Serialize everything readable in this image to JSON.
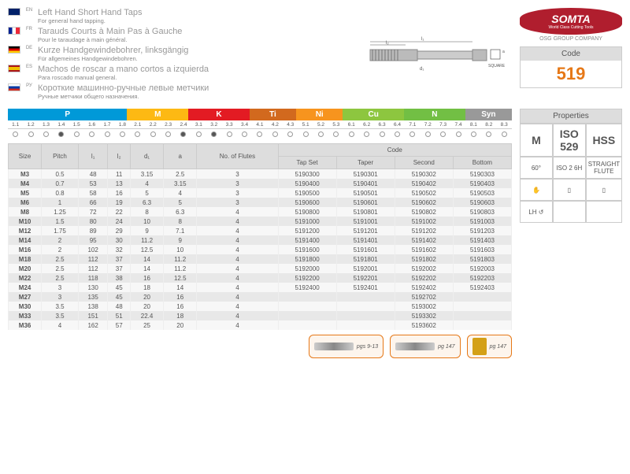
{
  "titles": [
    {
      "flag": "en",
      "code": "EN",
      "title": "Left Hand Short Hand Taps",
      "sub": "For general hand tapping."
    },
    {
      "flag": "fr",
      "code": "FR",
      "title": "Tarauds Courts à Main Pas à Gauche",
      "sub": "Pour le taraudage à main général."
    },
    {
      "flag": "de",
      "code": "DE",
      "title": "Kurze Handgewindebohrer, linksgängig",
      "sub": "Für allgemeines Handgewindebohren."
    },
    {
      "flag": "es",
      "code": "ES",
      "title": "Machos de roscar a mano cortos a izquierda",
      "sub": "Para roscado manual general."
    },
    {
      "flag": "ru",
      "code": "РУ",
      "title": "Короткие машинно-ручные левые метчики",
      "sub": "Ручные метчики общего назначения."
    }
  ],
  "logo": {
    "main": "SOMTA",
    "sub": "World Class Cutting Tools"
  },
  "osg": "OSG GROUP COMPANY",
  "codeLabel": "Code",
  "codeVal": "519",
  "groups": [
    "P",
    "M",
    "K",
    "Ti",
    "Ni",
    "Cu",
    "N",
    "Syn"
  ],
  "nums": [
    "1.1",
    "1.2",
    "1.3",
    "1.4",
    "1.5",
    "1.6",
    "1.7",
    "1.8",
    "2.1",
    "2.2",
    "2.3",
    "2.4",
    "3.1",
    "3.2",
    "3.3",
    "3.4",
    "4.1",
    "4.2",
    "4.3",
    "5.1",
    "5.2",
    "5.3",
    "6.1",
    "6.2",
    "6.3",
    "6.4",
    "7.1",
    "7.2",
    "7.3",
    "7.4",
    "8.1",
    "8.2",
    "8.3"
  ],
  "filled": [
    3,
    11,
    13
  ],
  "cols": [
    "Size",
    "Pitch",
    "l₁",
    "l₂",
    "d₁",
    "a",
    "No. of Flutes"
  ],
  "codeHdr": "Code",
  "codeCols": [
    "Tap Set",
    "Taper",
    "Second",
    "Bottom"
  ],
  "rows": [
    [
      "M3",
      "0.5",
      "48",
      "11",
      "3.15",
      "2.5",
      "3",
      "5190300",
      "5190301",
      "5190302",
      "5190303"
    ],
    [
      "M4",
      "0.7",
      "53",
      "13",
      "4",
      "3.15",
      "3",
      "5190400",
      "5190401",
      "5190402",
      "5190403"
    ],
    [
      "M5",
      "0.8",
      "58",
      "16",
      "5",
      "4",
      "3",
      "5190500",
      "5190501",
      "5190502",
      "5190503"
    ],
    [
      "M6",
      "1",
      "66",
      "19",
      "6.3",
      "5",
      "3",
      "5190600",
      "5190601",
      "5190602",
      "5190603"
    ],
    [
      "M8",
      "1.25",
      "72",
      "22",
      "8",
      "6.3",
      "4",
      "5190800",
      "5190801",
      "5190802",
      "5190803"
    ],
    [
      "M10",
      "1.5",
      "80",
      "24",
      "10",
      "8",
      "4",
      "5191000",
      "5191001",
      "5191002",
      "5191003"
    ],
    [
      "M12",
      "1.75",
      "89",
      "29",
      "9",
      "7.1",
      "4",
      "5191200",
      "5191201",
      "5191202",
      "5191203"
    ],
    [
      "M14",
      "2",
      "95",
      "30",
      "11.2",
      "9",
      "4",
      "5191400",
      "5191401",
      "5191402",
      "5191403"
    ],
    [
      "M16",
      "2",
      "102",
      "32",
      "12.5",
      "10",
      "4",
      "5191600",
      "5191601",
      "5191602",
      "5191603"
    ],
    [
      "M18",
      "2.5",
      "112",
      "37",
      "14",
      "11.2",
      "4",
      "5191800",
      "5191801",
      "5191802",
      "5191803"
    ],
    [
      "M20",
      "2.5",
      "112",
      "37",
      "14",
      "11.2",
      "4",
      "5192000",
      "5192001",
      "5192002",
      "5192003"
    ],
    [
      "M22",
      "2.5",
      "118",
      "38",
      "16",
      "12.5",
      "4",
      "5192200",
      "5192201",
      "5192202",
      "5192203"
    ],
    [
      "M24",
      "3",
      "130",
      "45",
      "18",
      "14",
      "4",
      "5192400",
      "5192401",
      "5192402",
      "5192403"
    ],
    [
      "M27",
      "3",
      "135",
      "45",
      "20",
      "16",
      "4",
      "",
      "",
      "5192702",
      ""
    ],
    [
      "M30",
      "3.5",
      "138",
      "48",
      "20",
      "16",
      "4",
      "",
      "",
      "5193002",
      ""
    ],
    [
      "M33",
      "3.5",
      "151",
      "51",
      "22.4",
      "18",
      "4",
      "",
      "",
      "5193302",
      ""
    ],
    [
      "M36",
      "4",
      "162",
      "57",
      "25",
      "20",
      "4",
      "",
      "",
      "5193602",
      ""
    ]
  ],
  "refs": [
    {
      "t": "pgs 9-13"
    },
    {
      "t": "pg 147"
    },
    {
      "t": "pg 147"
    }
  ],
  "propsLabel": "Properties",
  "props": [
    [
      "M",
      "ISO 529",
      "HSS"
    ],
    [
      "60°",
      "ISO 2 6H",
      "STRAIGHT FLUTE"
    ],
    [
      "✋",
      "▯",
      "▯"
    ],
    [
      "LH ↺",
      "",
      ""
    ]
  ],
  "square": "SQUARE"
}
